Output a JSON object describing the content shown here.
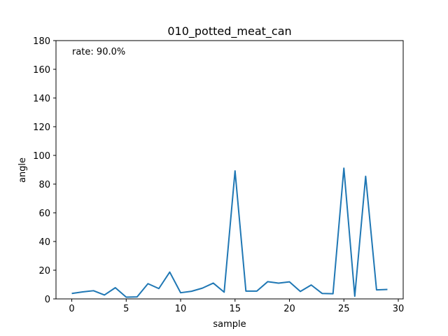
{
  "chart_data": {
    "type": "line",
    "title": "010_potted_meat_can",
    "xlabel": "sample",
    "ylabel": "angle",
    "annotation": "rate: 90.0%",
    "xlim": [
      -1.45,
      30.45
    ],
    "ylim": [
      0,
      180
    ],
    "xticks": [
      0,
      5,
      10,
      15,
      20,
      25,
      30
    ],
    "yticks": [
      0,
      20,
      40,
      60,
      80,
      100,
      120,
      140,
      160,
      180
    ],
    "grid": false,
    "series_color": "#1f77b4",
    "x": [
      0,
      1,
      2,
      3,
      4,
      5,
      6,
      7,
      8,
      9,
      10,
      11,
      12,
      13,
      14,
      15,
      16,
      17,
      18,
      19,
      20,
      21,
      22,
      23,
      24,
      25,
      26,
      27,
      28,
      29
    ],
    "values": [
      3.8,
      4.9,
      5.7,
      2.7,
      7.8,
      1.2,
      1.4,
      10.6,
      7.2,
      18.7,
      4.3,
      5.3,
      7.5,
      11.0,
      4.7,
      89.2,
      5.4,
      5.4,
      12.0,
      11.0,
      11.9,
      5.2,
      9.7,
      3.8,
      3.6,
      91.1,
      1.9,
      85.4,
      6.3,
      6.6
    ]
  }
}
